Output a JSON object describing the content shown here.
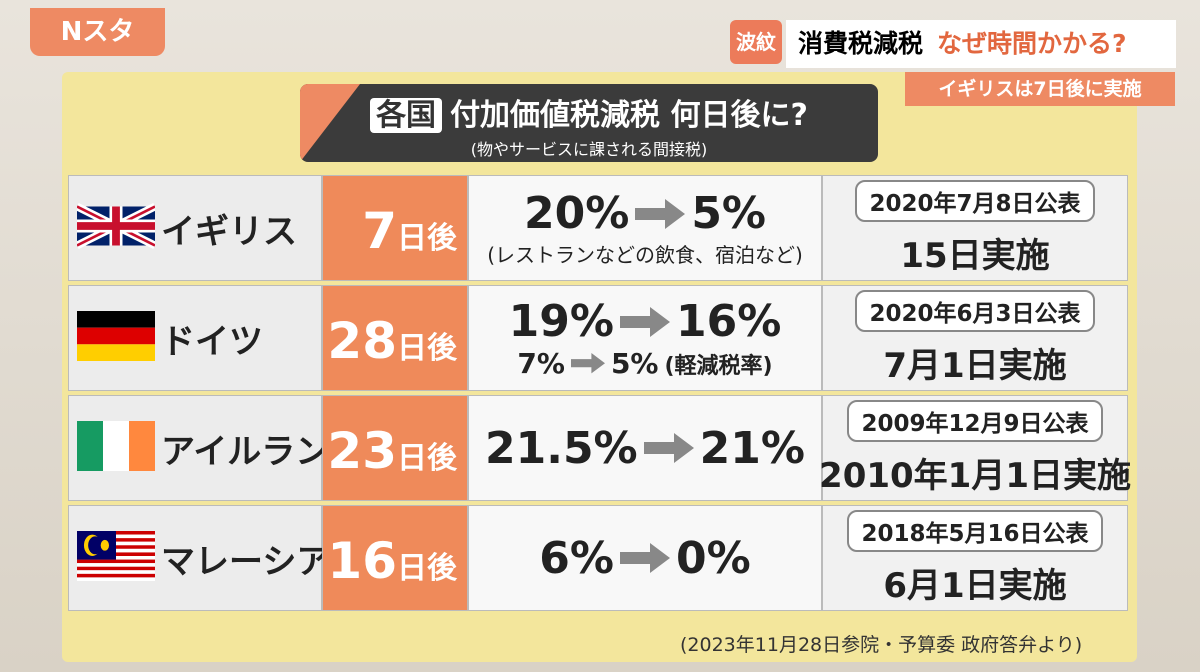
{
  "logo": "Nスタ",
  "topic_tag": "波紋",
  "headline": "消費税減税",
  "headline_question": "なぜ時間かかる?",
  "subheadline": "イギリスは7日後に実施",
  "board": {
    "title_tag": "各国",
    "title": "付加価値税減税 何日後に?",
    "subtitle": "(物やサービスに課される間接税)",
    "rows": [
      {
        "country": "イギリス",
        "days": "7",
        "unit": "日後",
        "rate_from": "20%",
        "rate_to": "5%",
        "note": "(レストランなどの飲食、宿泊など)",
        "announced": "2020年7月8日公表",
        "implemented": "15日実施"
      },
      {
        "country": "ドイツ",
        "days": "28",
        "unit": "日後",
        "rate_from": "19%",
        "rate_to": "16%",
        "reduced_from": "7%",
        "reduced_to": "5%",
        "note": "(軽減税率)",
        "announced": "2020年6月3日公表",
        "implemented": "7月1日実施"
      },
      {
        "country": "アイルランド",
        "days": "23",
        "unit": "日後",
        "rate_from": "21.5%",
        "rate_to": "21%",
        "announced": "2009年12月9日公表",
        "implemented": "2010年1月1日実施"
      },
      {
        "country": "マレーシア",
        "days": "16",
        "unit": "日後",
        "rate_from": "6%",
        "rate_to": "0%",
        "announced": "2018年5月16日公表",
        "implemented": "6月1日実施"
      }
    ],
    "source": "(2023年11月28日参院・予算委 政府答弁より)"
  }
}
